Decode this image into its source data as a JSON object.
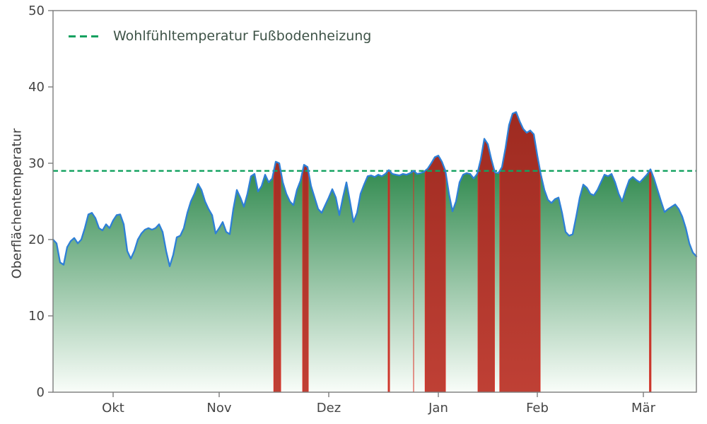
{
  "chart_data": {
    "type": "area",
    "title": "",
    "xlabel": "",
    "ylabel": "Oberflächentemperatur",
    "ylim": [
      0,
      50
    ],
    "yticks": [
      0,
      10,
      20,
      30,
      40,
      50
    ],
    "x_unit": "day-index (mid-September to mid-March)",
    "grid": false,
    "legend_position": "upper left",
    "month_ticks": [
      {
        "label": "Okt",
        "day": 17
      },
      {
        "label": "Nov",
        "day": 47
      },
      {
        "label": "Dez",
        "day": 78
      },
      {
        "label": "Jan",
        "day": 109
      },
      {
        "label": "Feb",
        "day": 137
      },
      {
        "label": "Mär",
        "day": 167
      }
    ],
    "threshold": {
      "label": "Wohlfühltemperatur Fußbodenheizung",
      "value": 29,
      "style": "dashed"
    },
    "red_bands_rule": "vertical bands shaded where series value >= threshold",
    "series": [
      {
        "name": "Oberflächentemperatur",
        "values": [
          20,
          19.5,
          17,
          16.7,
          19,
          19.8,
          20.2,
          19.5,
          20,
          21.5,
          23.3,
          23.5,
          22.8,
          21.5,
          21.2,
          22,
          21.5,
          22.5,
          23.2,
          23.3,
          22,
          18.5,
          17.5,
          18.5,
          20,
          20.8,
          21.3,
          21.5,
          21.3,
          21.5,
          22,
          21,
          18.5,
          16.5,
          18,
          20.3,
          20.5,
          21.5,
          23.5,
          25,
          26,
          27.3,
          26.5,
          25,
          24,
          23.2,
          20.8,
          21.5,
          22.3,
          21,
          20.7,
          24,
          26.5,
          25.5,
          24.3,
          26,
          28.3,
          28.6,
          26.3,
          27,
          28.5,
          27.5,
          28,
          30.2,
          30,
          27.5,
          26,
          25,
          24.5,
          26.5,
          27.7,
          29.8,
          29.5,
          27,
          25.5,
          24,
          23.5,
          24.5,
          25.5,
          26.6,
          25.5,
          23.2,
          25.5,
          27.5,
          25,
          22.3,
          23.5,
          26,
          27.2,
          28.3,
          28.4,
          28.2,
          28.5,
          28.3,
          28.6,
          29.1,
          28.6,
          28.5,
          28.4,
          28.6,
          28.5,
          28.7,
          29,
          28.6,
          28.7,
          28.9,
          29.3,
          30,
          30.8,
          31,
          30.2,
          29,
          26,
          23.7,
          25,
          27.5,
          28.5,
          28.7,
          28.6,
          28,
          28.6,
          30.5,
          33.2,
          32.5,
          30.5,
          28.8,
          28.7,
          29.5,
          32,
          35,
          36.5,
          36.7,
          35.5,
          34.5,
          34,
          34.3,
          33.8,
          31,
          28.5,
          26.5,
          25.2,
          24.8,
          25.3,
          25.5,
          23.5,
          21,
          20.5,
          20.7,
          23,
          25.5,
          27.2,
          26.8,
          26,
          25.8,
          26.5,
          27.5,
          28.5,
          28.3,
          28.6,
          27.5,
          26,
          25,
          26.5,
          27.8,
          28.2,
          27.8,
          27.5,
          28,
          28.5,
          29.2,
          28,
          26.5,
          25,
          23.6,
          24,
          24.3,
          24.6,
          24,
          23,
          21.5,
          19.5,
          18.3,
          17.8
        ]
      }
    ],
    "colors": {
      "line": "#2e7fd6",
      "threshold": "#12a15f",
      "area_top": "#1f8040",
      "area_bottom": "#f9fdf9",
      "band_top": "#9e2a20",
      "band_bottom": "#bf4035",
      "band_edge": "#d93025",
      "axis": "#7c7c7c",
      "tick_text": "#454545"
    }
  }
}
